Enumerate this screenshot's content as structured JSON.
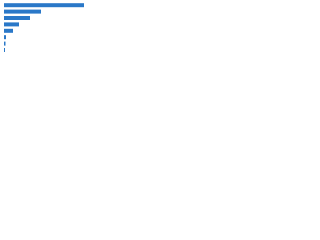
{
  "chart_data": {
    "type": "bar",
    "orientation": "horizontal",
    "categories": [
      null,
      null,
      null,
      null,
      null,
      null,
      null,
      null
    ],
    "values": [
      80,
      37,
      26,
      15,
      9,
      2,
      1.5,
      1
    ],
    "color": "#2a78c8",
    "xlim": [
      0,
      96
    ]
  }
}
